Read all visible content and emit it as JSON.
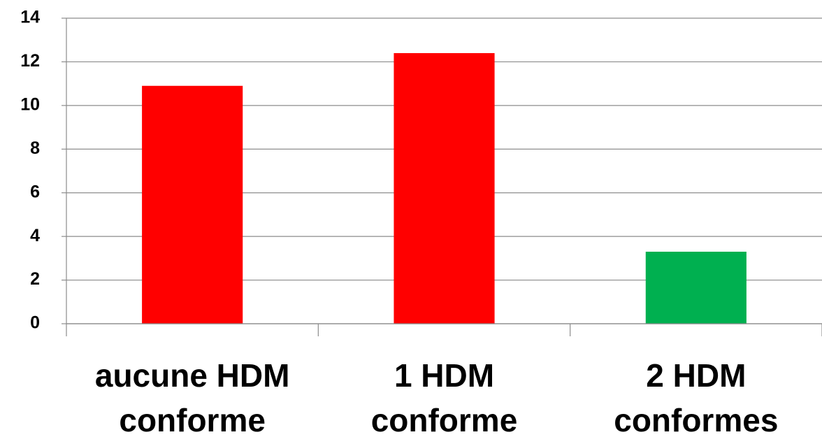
{
  "chart_data": {
    "type": "bar",
    "categories": [
      "aucune HDM conforme",
      "1 HDM conforme",
      "2 HDM conformes"
    ],
    "values": [
      10.9,
      12.4,
      3.3
    ],
    "colors": [
      "#ff0000",
      "#ff0000",
      "#00b050"
    ],
    "ylim": [
      0,
      14
    ],
    "yticks": [
      0,
      2,
      4,
      6,
      8,
      10,
      12,
      14
    ],
    "grid": true
  }
}
